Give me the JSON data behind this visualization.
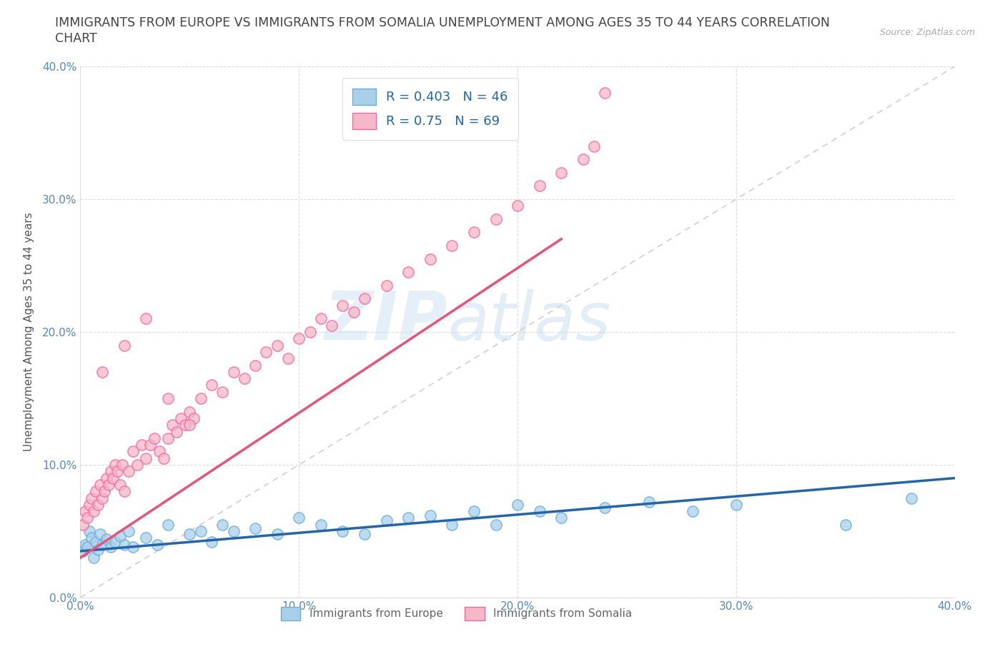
{
  "title_line1": "IMMIGRANTS FROM EUROPE VS IMMIGRANTS FROM SOMALIA UNEMPLOYMENT AMONG AGES 35 TO 44 YEARS CORRELATION",
  "title_line2": "CHART",
  "source_text": "Source: ZipAtlas.com",
  "ylabel": "Unemployment Among Ages 35 to 44 years",
  "xlim": [
    0.0,
    0.4
  ],
  "ylim": [
    0.0,
    0.4
  ],
  "europe_color": "#a8d0ea",
  "europe_edge_color": "#6baed6",
  "somalia_color": "#f5b8c8",
  "somalia_edge_color": "#f768a1",
  "europe_line_color": "#2166ac",
  "somalia_line_color": "#e8537a",
  "diag_line_color": "#d0d0d0",
  "europe_R": 0.403,
  "europe_N": 46,
  "somalia_R": 0.75,
  "somalia_N": 69,
  "watermark_zip": "ZIP",
  "watermark_atlas": "atlas",
  "background_color": "#ffffff",
  "grid_color": "#dddddd",
  "title_color": "#444444",
  "tick_color": "#5588bb",
  "ylabel_color": "#555555",
  "source_color": "#aaaaaa",
  "legend_text_color": "#2166ac",
  "europe_x": [
    0.001,
    0.002,
    0.003,
    0.004,
    0.005,
    0.006,
    0.007,
    0.008,
    0.009,
    0.01,
    0.012,
    0.014,
    0.016,
    0.018,
    0.02,
    0.022,
    0.024,
    0.03,
    0.035,
    0.04,
    0.05,
    0.055,
    0.06,
    0.065,
    0.07,
    0.08,
    0.09,
    0.1,
    0.11,
    0.12,
    0.13,
    0.14,
    0.15,
    0.16,
    0.17,
    0.18,
    0.19,
    0.2,
    0.21,
    0.22,
    0.24,
    0.26,
    0.28,
    0.3,
    0.35,
    0.38
  ],
  "europe_y": [
    0.035,
    0.04,
    0.038,
    0.05,
    0.045,
    0.03,
    0.042,
    0.036,
    0.048,
    0.04,
    0.044,
    0.038,
    0.042,
    0.046,
    0.04,
    0.05,
    0.038,
    0.045,
    0.04,
    0.055,
    0.048,
    0.05,
    0.042,
    0.055,
    0.05,
    0.052,
    0.048,
    0.06,
    0.055,
    0.05,
    0.048,
    0.058,
    0.06,
    0.062,
    0.055,
    0.065,
    0.055,
    0.07,
    0.065,
    0.06,
    0.068,
    0.072,
    0.065,
    0.07,
    0.055,
    0.075
  ],
  "somalia_x": [
    0.001,
    0.002,
    0.003,
    0.004,
    0.005,
    0.006,
    0.007,
    0.008,
    0.009,
    0.01,
    0.011,
    0.012,
    0.013,
    0.014,
    0.015,
    0.016,
    0.017,
    0.018,
    0.019,
    0.02,
    0.022,
    0.024,
    0.026,
    0.028,
    0.03,
    0.032,
    0.034,
    0.036,
    0.038,
    0.04,
    0.042,
    0.044,
    0.046,
    0.048,
    0.05,
    0.052,
    0.055,
    0.06,
    0.065,
    0.07,
    0.075,
    0.08,
    0.085,
    0.09,
    0.095,
    0.1,
    0.105,
    0.11,
    0.115,
    0.12,
    0.125,
    0.13,
    0.14,
    0.15,
    0.16,
    0.17,
    0.18,
    0.19,
    0.2,
    0.21,
    0.22,
    0.23,
    0.235,
    0.24,
    0.01,
    0.02,
    0.03,
    0.04,
    0.05
  ],
  "somalia_y": [
    0.055,
    0.065,
    0.06,
    0.07,
    0.075,
    0.065,
    0.08,
    0.07,
    0.085,
    0.075,
    0.08,
    0.09,
    0.085,
    0.095,
    0.09,
    0.1,
    0.095,
    0.085,
    0.1,
    0.08,
    0.095,
    0.11,
    0.1,
    0.115,
    0.105,
    0.115,
    0.12,
    0.11,
    0.105,
    0.12,
    0.13,
    0.125,
    0.135,
    0.13,
    0.14,
    0.135,
    0.15,
    0.16,
    0.155,
    0.17,
    0.165,
    0.175,
    0.185,
    0.19,
    0.18,
    0.195,
    0.2,
    0.21,
    0.205,
    0.22,
    0.215,
    0.225,
    0.235,
    0.245,
    0.255,
    0.265,
    0.275,
    0.285,
    0.295,
    0.31,
    0.32,
    0.33,
    0.34,
    0.38,
    0.17,
    0.19,
    0.21,
    0.15,
    0.13
  ],
  "europe_trend_x": [
    0.0,
    0.4
  ],
  "europe_trend_y": [
    0.035,
    0.09
  ],
  "somalia_trend_x": [
    0.0,
    0.22
  ],
  "somalia_trend_y": [
    0.03,
    0.27
  ]
}
